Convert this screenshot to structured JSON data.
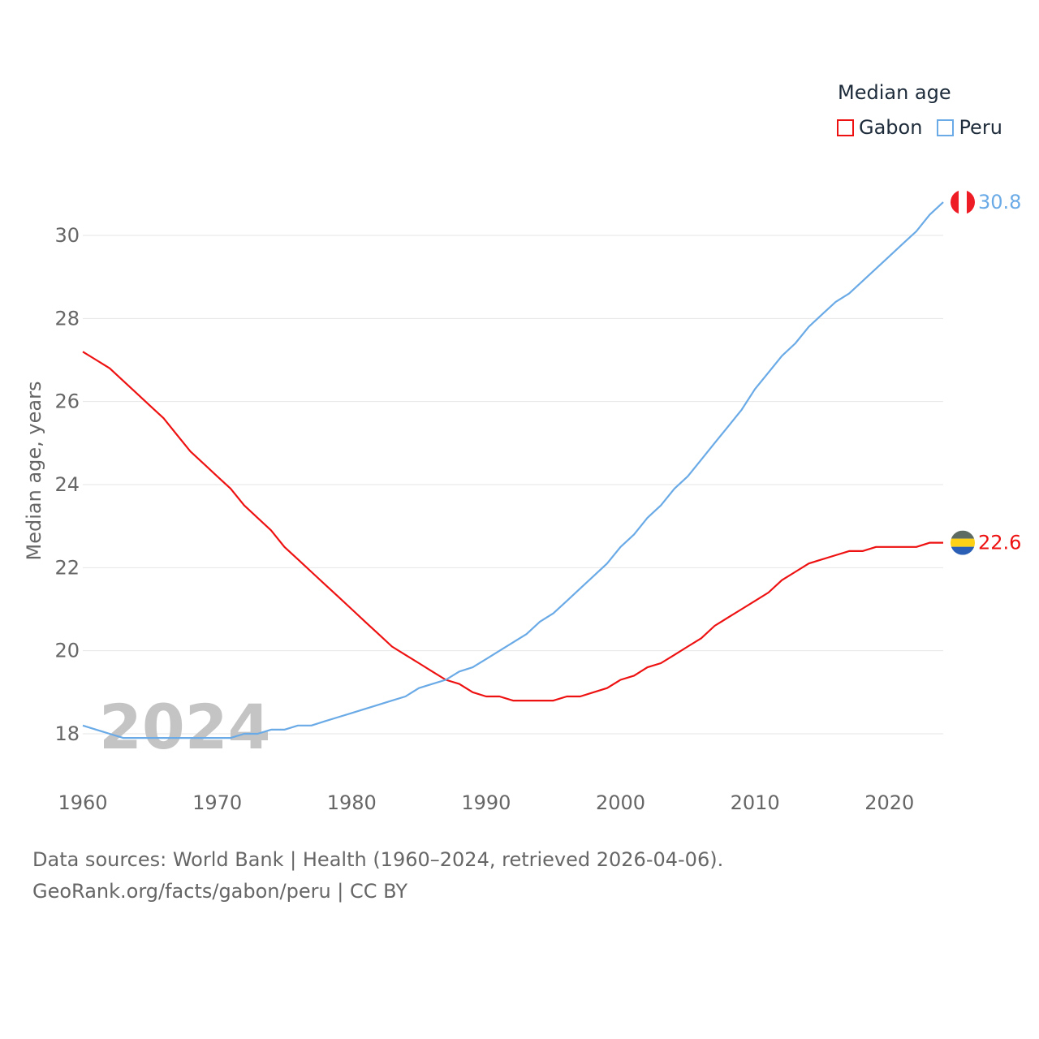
{
  "legend": {
    "title": "Median age"
  },
  "footer": {
    "line1": "Data sources: World Bank | Health (1960–2024, retrieved 2026-04-06).",
    "line2": "GeoRank.org/facts/gabon/peru | CC BY"
  },
  "colors": {
    "gabon": "#ee1111",
    "peru": "#6aaae6",
    "grid": "#e6e6e6",
    "tick": "#666666",
    "watermark": "#c4c4c4"
  },
  "chart_data": {
    "type": "line",
    "title": "",
    "xlabel": "",
    "ylabel": "Median age, years",
    "year_label": "2024",
    "xlim": [
      1960,
      2024
    ],
    "ylim": [
      17,
      31.5
    ],
    "x_ticks": [
      1960,
      1970,
      1980,
      1990,
      2000,
      2010,
      2020
    ],
    "y_ticks": [
      18,
      20,
      22,
      24,
      26,
      28,
      30
    ],
    "x": [
      1960,
      1961,
      1962,
      1963,
      1964,
      1965,
      1966,
      1967,
      1968,
      1969,
      1970,
      1971,
      1972,
      1973,
      1974,
      1975,
      1976,
      1977,
      1978,
      1979,
      1980,
      1981,
      1982,
      1983,
      1984,
      1985,
      1986,
      1987,
      1988,
      1989,
      1990,
      1991,
      1992,
      1993,
      1994,
      1995,
      1996,
      1997,
      1998,
      1999,
      2000,
      2001,
      2002,
      2003,
      2004,
      2005,
      2006,
      2007,
      2008,
      2009,
      2010,
      2011,
      2012,
      2013,
      2014,
      2015,
      2016,
      2017,
      2018,
      2019,
      2020,
      2021,
      2022,
      2023,
      2024
    ],
    "series": [
      {
        "name": "Gabon",
        "color": "#ee1111",
        "end_label": "22.6",
        "values": [
          27.2,
          27.0,
          26.8,
          26.5,
          26.2,
          25.9,
          25.6,
          25.2,
          24.8,
          24.5,
          24.2,
          23.9,
          23.5,
          23.2,
          22.9,
          22.5,
          22.2,
          21.9,
          21.6,
          21.3,
          21.0,
          20.7,
          20.4,
          20.1,
          19.9,
          19.7,
          19.5,
          19.3,
          19.2,
          19.0,
          18.9,
          18.9,
          18.8,
          18.8,
          18.8,
          18.8,
          18.9,
          18.9,
          19.0,
          19.1,
          19.3,
          19.4,
          19.6,
          19.7,
          19.9,
          20.1,
          20.3,
          20.6,
          20.8,
          21.0,
          21.2,
          21.4,
          21.7,
          21.9,
          22.1,
          22.2,
          22.3,
          22.4,
          22.4,
          22.5,
          22.5,
          22.5,
          22.5,
          22.6,
          22.6
        ]
      },
      {
        "name": "Peru",
        "color": "#6aaae6",
        "end_label": "30.8",
        "values": [
          18.2,
          18.1,
          18.0,
          17.9,
          17.9,
          17.9,
          17.9,
          17.9,
          17.9,
          17.9,
          17.9,
          17.9,
          18.0,
          18.0,
          18.1,
          18.1,
          18.2,
          18.2,
          18.3,
          18.4,
          18.5,
          18.6,
          18.7,
          18.8,
          18.9,
          19.1,
          19.2,
          19.3,
          19.5,
          19.6,
          19.8,
          20.0,
          20.2,
          20.4,
          20.7,
          20.9,
          21.2,
          21.5,
          21.8,
          22.1,
          22.5,
          22.8,
          23.2,
          23.5,
          23.9,
          24.2,
          24.6,
          25.0,
          25.4,
          25.8,
          26.3,
          26.7,
          27.1,
          27.4,
          27.8,
          28.1,
          28.4,
          28.6,
          28.9,
          29.2,
          29.5,
          29.8,
          30.1,
          30.5,
          30.8
        ]
      }
    ]
  }
}
